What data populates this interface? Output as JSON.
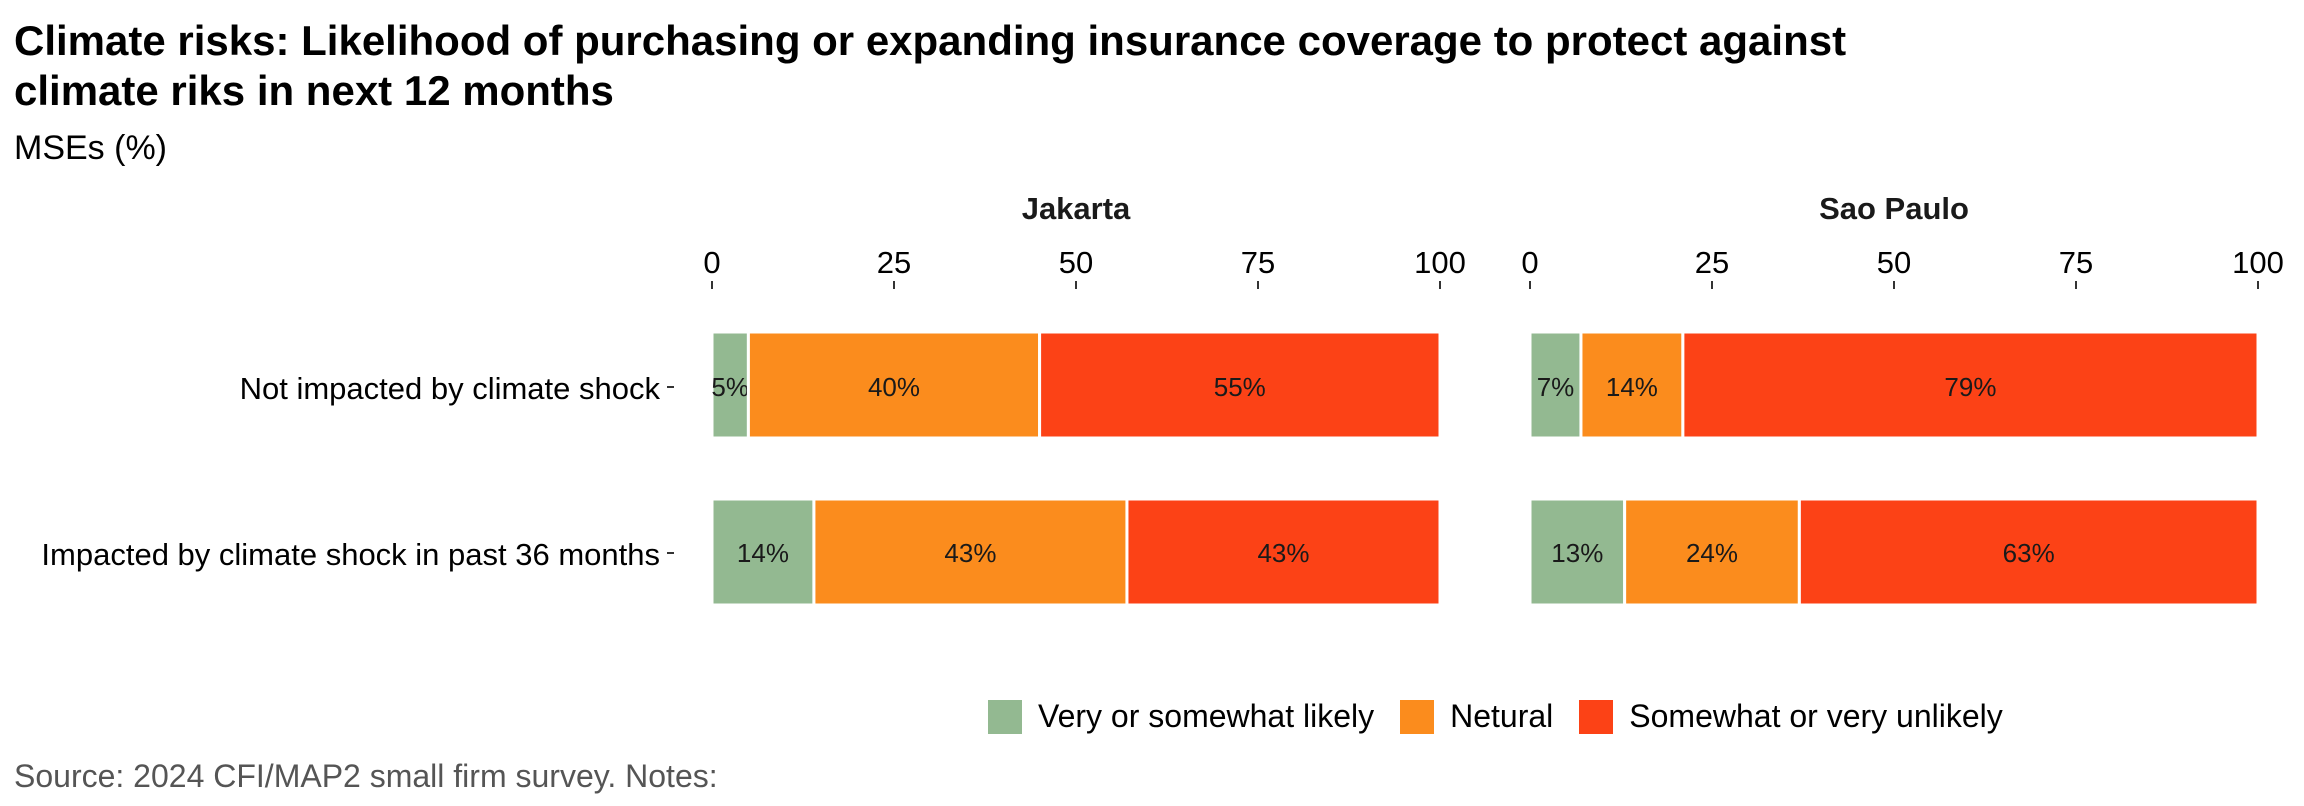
{
  "chart_data": {
    "type": "bar",
    "stacked": true,
    "orientation": "horizontal",
    "title": "Climate risks: Likelihood of purchasing or expanding insurance coverage to protect against climate riks in next 12 months",
    "subtitle": "MSEs (%)",
    "source": "Source: 2024 CFI/MAP2 small firm survey. Notes:",
    "xlim": [
      0,
      100
    ],
    "xticks": [
      0,
      25,
      50,
      75,
      100
    ],
    "categories": [
      "Not impacted by climate shock",
      "Impacted by climate shock in past 36 months"
    ],
    "legend": {
      "position": "bottom",
      "entries": [
        {
          "name": "Very or somewhat likely",
          "color": "#93b991"
        },
        {
          "name": "Netural",
          "color": "#fb8c1d"
        },
        {
          "name": "Somewhat or very unlikely",
          "color": "#fc4216"
        }
      ]
    },
    "panels": [
      {
        "name": "Jakarta",
        "series": [
          {
            "name": "Very or somewhat likely",
            "values": [
              5,
              14
            ],
            "labels": [
              "5%",
              "14%"
            ]
          },
          {
            "name": "Netural",
            "values": [
              40,
              43
            ],
            "labels": [
              "40%",
              "43%"
            ]
          },
          {
            "name": "Somewhat or very unlikely",
            "values": [
              55,
              43
            ],
            "labels": [
              "55%",
              "43%"
            ]
          }
        ]
      },
      {
        "name": "Sao Paulo",
        "series": [
          {
            "name": "Very or somewhat likely",
            "values": [
              7,
              13
            ],
            "labels": [
              "7%",
              "13%"
            ]
          },
          {
            "name": "Netural",
            "values": [
              14,
              24
            ],
            "labels": [
              "14%",
              "24%"
            ]
          },
          {
            "name": "Somewhat or very unlikely",
            "values": [
              79,
              63
            ],
            "labels": [
              "79%",
              "63%"
            ]
          }
        ]
      }
    ]
  }
}
